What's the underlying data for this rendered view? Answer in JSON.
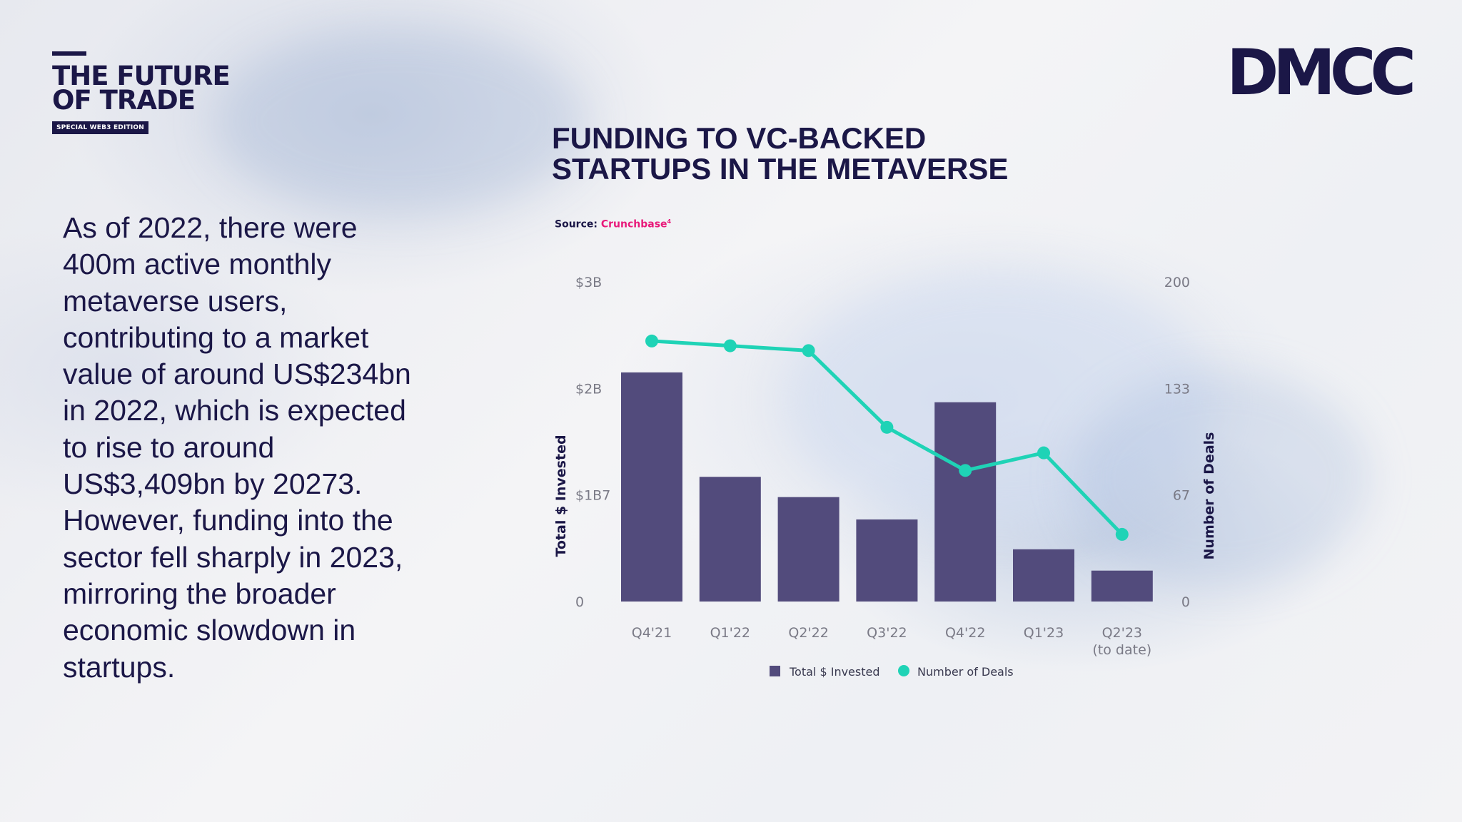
{
  "branding": {
    "title": "THE FUTURE\nOF TRADE",
    "edition_badge": "SPECIAL WEB3 EDITION",
    "logo": "DMCC"
  },
  "body_text": "As of 2022, there were 400m active monthly metaverse users, contributing to a market value of around US$234bn in 2022, which is expected to rise to around US$3,409bn by 20273. However, funding into the sector fell sharply in 2023, mirroring the broader economic slowdown in startups.",
  "source": {
    "label": "Source:",
    "name": "Crunchbase",
    "footnote": "4"
  },
  "colors": {
    "navy": "#1b1747",
    "bar": "#524b7c",
    "line": "#1fd3b6",
    "source_pink": "#e8197a"
  },
  "chart_data": {
    "type": "bar",
    "title": "FUNDING TO VC-BACKED\nSTARTUPS IN THE METAVERSE",
    "categories": [
      "Q4'21",
      "Q1'22",
      "Q2'22",
      "Q3'22",
      "Q4'22",
      "Q1'23",
      "Q2'23\n(to date)"
    ],
    "ylabel": "Total $ Invested",
    "y2label": "Number of Deals",
    "y_ticks": [
      "$3B",
      "$2B",
      "$1B7",
      "0"
    ],
    "y2_ticks": [
      "200",
      "133",
      "67",
      "0"
    ],
    "ylim": [
      0,
      3
    ],
    "y2lim": [
      0,
      200
    ],
    "series": [
      {
        "name": "Total $ Invested",
        "type": "bar",
        "axis": "left",
        "values": [
          2.15,
          1.17,
          0.98,
          0.77,
          1.87,
          0.49,
          0.29
        ]
      },
      {
        "name": "Number of Deals",
        "type": "line",
        "axis": "right",
        "values": [
          163,
          160,
          157,
          109,
          82,
          93,
          42
        ]
      }
    ],
    "legend": "bottom-center",
    "grid": false
  }
}
